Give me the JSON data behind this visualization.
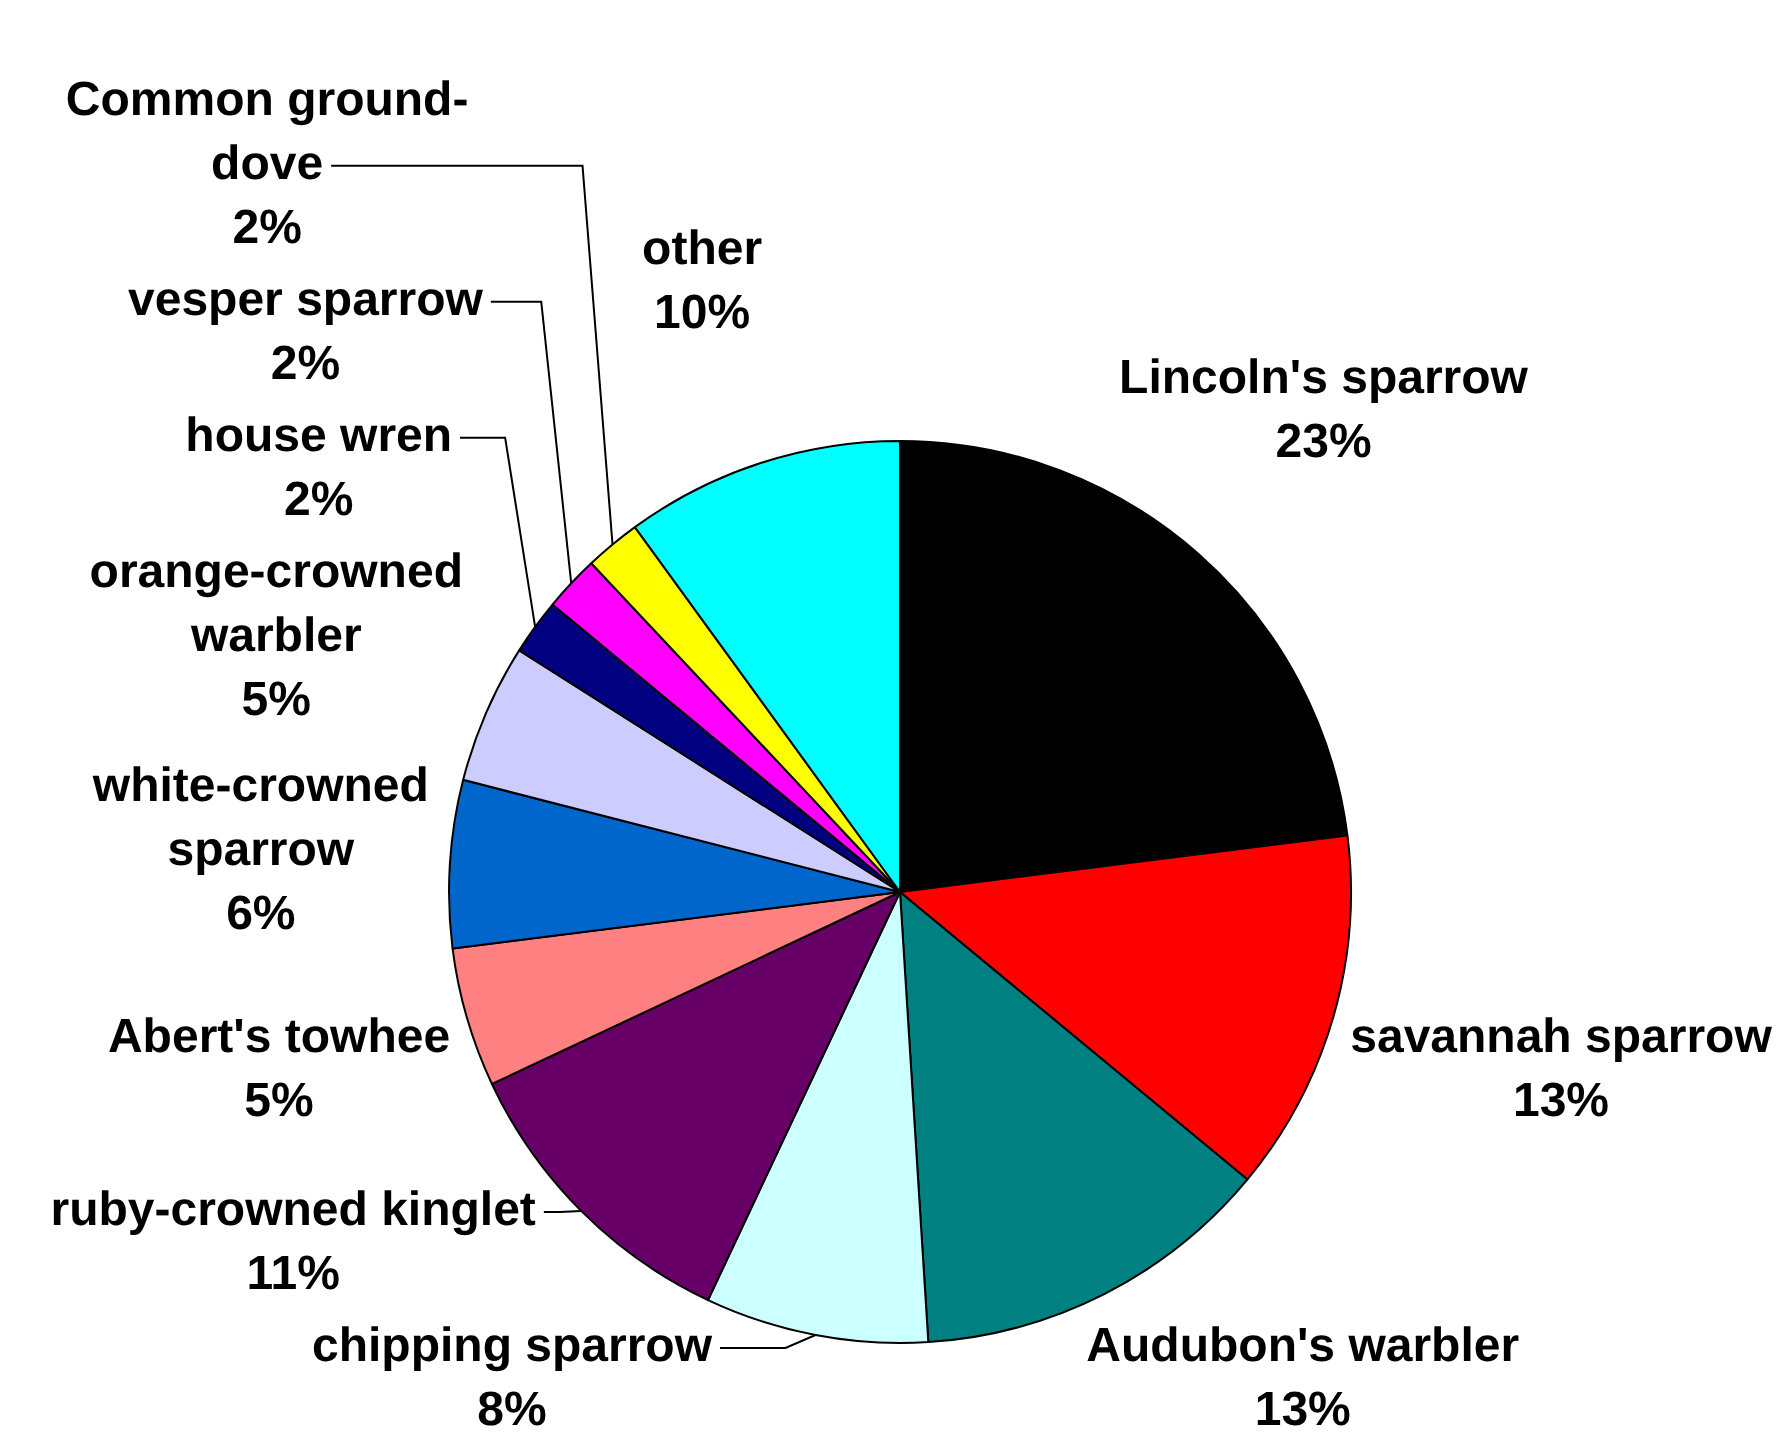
{
  "chart_data": {
    "type": "pie",
    "categories": [
      "Lincoln's sparrow",
      "savannah sparrow",
      "Audubon's warbler",
      "chipping sparrow",
      "ruby-crowned kinglet",
      "Abert's towhee",
      "white-crowned sparrow",
      "orange-crowned warbler",
      "house wren",
      "vesper sparrow",
      "Common ground-dove",
      "other"
    ],
    "values": [
      23,
      13,
      13,
      8,
      11,
      5,
      6,
      5,
      2,
      2,
      2,
      10
    ],
    "value_labels": [
      "23%",
      "13%",
      "13%",
      "8%",
      "11%",
      "5%",
      "6%",
      "5%",
      "2%",
      "2%",
      "2%",
      "10%"
    ],
    "colors": [
      "#000000",
      "#ff0000",
      "#008080",
      "#ccffff",
      "#660066",
      "#ff8080",
      "#0066cc",
      "#ccccff",
      "#000080",
      "#ff00ff",
      "#ffff00",
      "#00ffff"
    ]
  }
}
